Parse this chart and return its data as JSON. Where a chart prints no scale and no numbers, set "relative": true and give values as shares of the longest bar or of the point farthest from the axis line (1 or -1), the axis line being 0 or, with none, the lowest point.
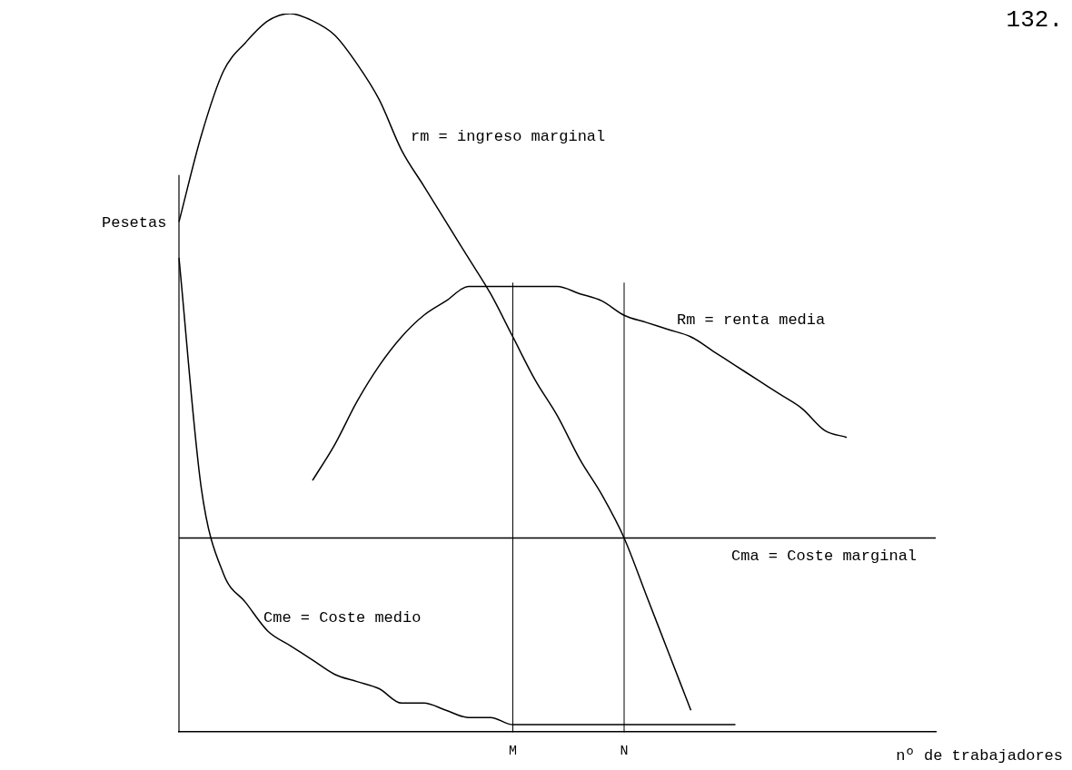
{
  "chart_data": {
    "type": "line",
    "relative": true,
    "xlabel": "nº de trabajadores",
    "ylabel": "Pesetas",
    "annotations": [
      "132."
    ],
    "categories": [
      null,
      null,
      null,
      null,
      null,
      null,
      null,
      null,
      null,
      null,
      null,
      null,
      null,
      null,
      null,
      "M",
      null,
      null,
      null,
      null,
      "N",
      null,
      null,
      null,
      null,
      null,
      null,
      null,
      null,
      null,
      null,
      null,
      null,
      null,
      null
    ],
    "series": [
      {
        "name": "rm = ingreso marginal",
        "color": "#000000",
        "values": [
          0.71,
          0.83,
          0.92,
          0.96,
          0.99,
          1,
          0.99,
          0.97,
          0.93,
          0.88,
          0.81,
          0.76,
          0.71,
          0.66,
          0.61,
          0.55,
          0.49,
          0.44,
          0.38,
          0.33,
          0.27,
          0.19,
          0.11,
          0.03,
          null,
          null,
          null,
          null,
          null,
          null,
          null,
          null,
          null,
          null,
          null
        ]
      },
      {
        "name": "Rm = renta media",
        "color": "#000000",
        "values": [
          null,
          null,
          null,
          null,
          null,
          null,
          0.35,
          0.4,
          0.46,
          0.51,
          0.55,
          0.58,
          0.6,
          0.62,
          0.62,
          0.62,
          0.62,
          0.62,
          0.61,
          0.6,
          0.58,
          0.57,
          0.56,
          0.55,
          0.53,
          0.51,
          0.49,
          0.47,
          0.45,
          0.42,
          0.41,
          null,
          null,
          null,
          null
        ]
      },
      {
        "name": "Cme = Coste medio",
        "color": "#000000",
        "values": [
          0.66,
          0.34,
          0.22,
          0.18,
          0.14,
          0.12,
          0.1,
          0.08,
          0.07,
          0.06,
          0.04,
          0.04,
          0.03,
          0.02,
          0.02,
          0.01,
          0.01,
          0.01,
          0.01,
          0.01,
          0.01,
          0.01,
          0.01,
          0.01,
          0.01,
          0.01,
          null,
          null,
          null,
          null,
          null,
          null,
          null,
          null,
          null
        ]
      },
      {
        "name": "Cma = Coste marginal",
        "color": "#000000",
        "values": [
          0.27,
          0.27,
          0.27,
          0.27,
          0.27,
          0.27,
          0.27,
          0.27,
          0.27,
          0.27,
          0.27,
          0.27,
          0.27,
          0.27,
          0.27,
          0.27,
          0.27,
          0.27,
          0.27,
          0.27,
          0.27,
          0.27,
          0.27,
          0.27,
          0.27,
          0.27,
          0.27,
          0.27,
          0.27,
          0.27,
          0.27,
          0.27,
          0.27,
          0.27,
          0.27
        ]
      }
    ],
    "ref_lines": [
      {
        "axis": "x",
        "value": "M",
        "label": null
      },
      {
        "axis": "x",
        "value": "N",
        "label": null
      }
    ],
    "grid": false,
    "legend": false,
    "marker": "none",
    "line_style": "solid"
  }
}
